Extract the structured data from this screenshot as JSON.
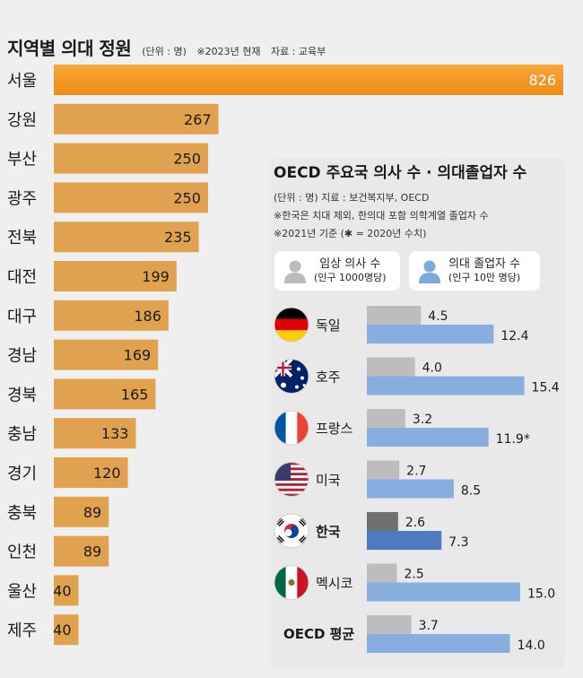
{
  "header": {
    "title": "지역별 의대 정원",
    "unit": "(단위 : 명)",
    "note": "※2023년 현재",
    "source": "자료 : 교육부"
  },
  "colors": {
    "highlight_bar": "#f2941f",
    "regular_bar": "#e1a24f",
    "light_gray_bar": "#bdbdbd",
    "dark_gray_bar": "#6f6f6f",
    "light_blue_bar": "#86aede",
    "dark_blue_bar": "#4d7ac0",
    "icon_gray": "#bcbcbc",
    "icon_blue": "#7ea9dd"
  },
  "chart_data": [
    {
      "type": "bar",
      "orientation": "horizontal",
      "title": "지역별 의대 정원",
      "unit": "명",
      "categories": [
        "서울",
        "강원",
        "부산",
        "광주",
        "전북",
        "대전",
        "대구",
        "경남",
        "경북",
        "충남",
        "경기",
        "충북",
        "인천",
        "울산",
        "제주"
      ],
      "values": [
        826,
        267,
        250,
        250,
        235,
        199,
        186,
        169,
        165,
        133,
        120,
        89,
        89,
        40,
        40
      ],
      "labels": [
        "826",
        "267",
        "250",
        "250",
        "235",
        "199",
        "186",
        "169",
        "165",
        "133",
        "120",
        "89",
        "89",
        "40",
        "40"
      ],
      "highlight": "서울",
      "xlim": [
        0,
        826
      ]
    },
    {
      "type": "bar",
      "orientation": "horizontal",
      "title": "OECD 주요국 의사 수 · 의대졸업자 수",
      "notes": [
        "(단위 : 명)  지료 : 보건복지부, OECD",
        "※한국은 치대 제외, 한의대 포함 의학계열 졸업자 수",
        "※2021년 기준 (✱ = 2020년 수치)"
      ],
      "categories": [
        "독일",
        "호주",
        "프랑스",
        "미국",
        "한국",
        "멕시코",
        "OECD 평균"
      ],
      "highlight": "한국",
      "series": [
        {
          "name": "임상 의사 수",
          "sub": "(인구 1000명당)",
          "values": [
            4.5,
            4.0,
            3.2,
            2.7,
            2.6,
            2.5,
            3.7
          ],
          "labels": [
            "4.5",
            "4.0",
            "3.2",
            "2.7",
            "2.6",
            "2.5",
            "3.7"
          ]
        },
        {
          "name": "의대 졸업자 수",
          "sub": "(인구 10만 명당)",
          "values": [
            12.4,
            15.4,
            11.9,
            8.5,
            7.3,
            15.0,
            14.0
          ],
          "labels": [
            "12.4",
            "15.4",
            "11.9*",
            "8.5",
            "7.3",
            "15.0",
            "14.0"
          ]
        }
      ]
    }
  ]
}
